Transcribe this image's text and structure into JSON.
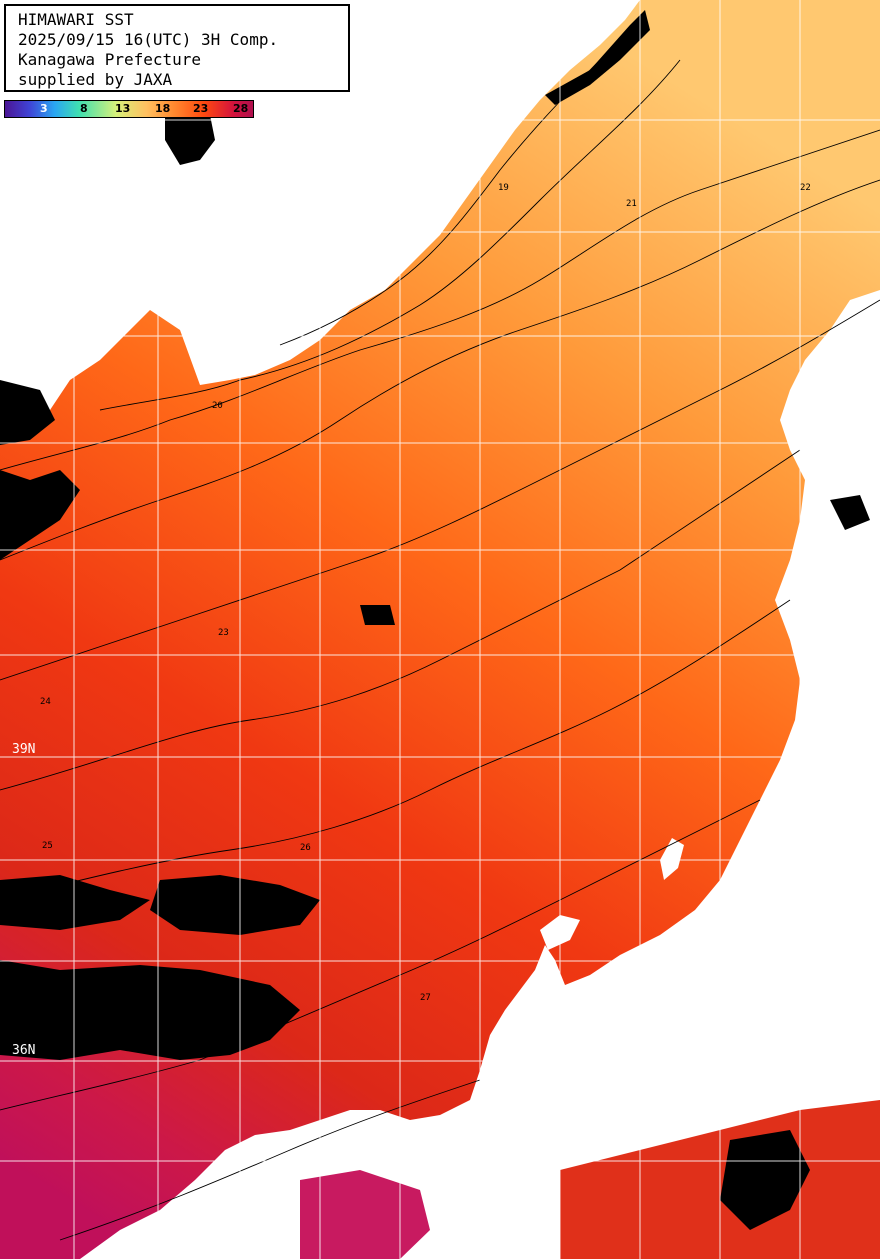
{
  "title": {
    "line1": "HIMAWARI SST",
    "line2": "2025/09/15 16(UTC) 3H Comp.",
    "line3": "Kanagawa Prefecture",
    "line4": "supplied by JAXA"
  },
  "colorbar": {
    "ticks": [
      "3",
      "8",
      "13",
      "18",
      "23",
      "28"
    ]
  },
  "latitude_labels": [
    "39N",
    "36N"
  ],
  "contour_labels": [
    "19",
    "20",
    "21",
    "22",
    "23",
    "24",
    "25",
    "26",
    "27"
  ],
  "colors": {
    "land": "#ffffff",
    "cloud_mask": "#000000",
    "grid": "#ffffff",
    "contour": "#000000",
    "sst_cool": "#ffb24a",
    "sst_mid": "#ff6a18",
    "sst_warm": "#e02a10",
    "sst_hot": "#c4124e"
  }
}
